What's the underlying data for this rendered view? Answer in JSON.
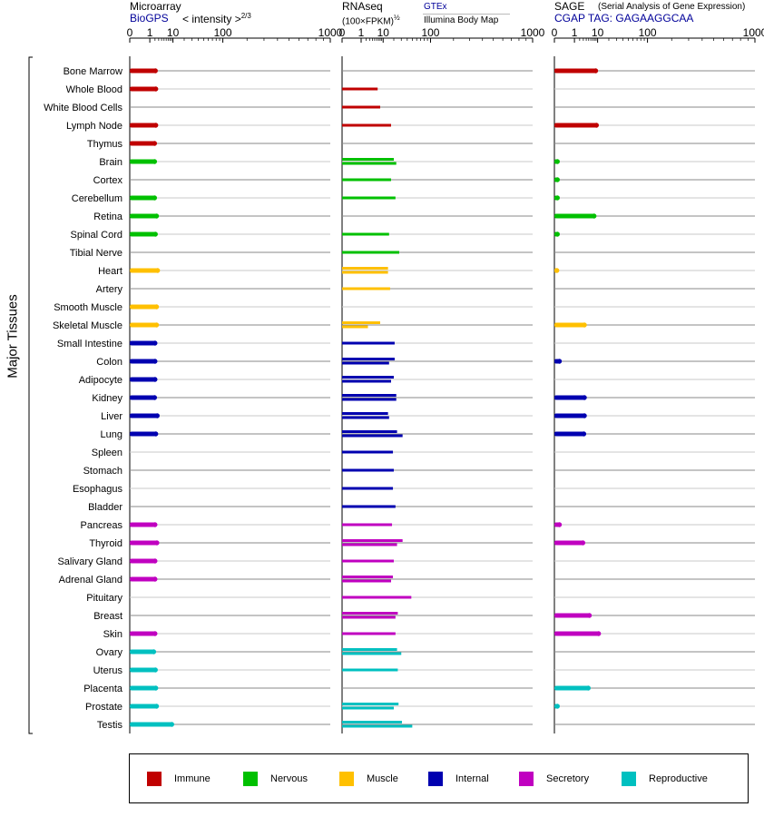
{
  "headers": {
    "microarray_title": "Microarray",
    "microarray_source": "BioGPS",
    "microarray_metric": "< intensity >",
    "microarray_metric_exp": "2/3",
    "rnaseq_title": "RNAseq",
    "rnaseq_metric": "(100×FPKM)",
    "rnaseq_metric_exp": "½",
    "rnaseq_source1": "GTEx",
    "rnaseq_source2": "Illumina Body Map",
    "sage_title": "SAGE",
    "sage_subtitle": "(Serial Analysis of Gene Expression)",
    "sage_tag": "CGAP TAG: GAGAAGGCAA"
  },
  "axis_title": "Major Tissues",
  "legend": [
    {
      "name": "Immune",
      "color": "#c00000"
    },
    {
      "name": "Nervous",
      "color": "#00c000"
    },
    {
      "name": "Muscle",
      "color": "#ffc000"
    },
    {
      "name": "Internal",
      "color": "#0000b0"
    },
    {
      "name": "Secretory",
      "color": "#c000c0"
    },
    {
      "name": "Reproductive",
      "color": "#00c0c0"
    }
  ],
  "chart_data": [
    {
      "type": "bar",
      "panel": "Microarray",
      "x_ticks": [
        "0",
        "1",
        "10",
        "100",
        "1000"
      ],
      "xlim": [
        0,
        1000
      ],
      "categories": [
        "Bone Marrow",
        "Whole Blood",
        "White Blood Cells",
        "Lymph Node",
        "Thymus",
        "Brain",
        "Cortex",
        "Cerebellum",
        "Retina",
        "Spinal Cord",
        "Tibial Nerve",
        "Heart",
        "Artery",
        "Smooth Muscle",
        "Skeletal Muscle",
        "Small Intestine",
        "Colon",
        "Adipocyte",
        "Kidney",
        "Liver",
        "Lung",
        "Spleen",
        "Stomach",
        "Esophagus",
        "Bladder",
        "Pancreas",
        "Thyroid",
        "Salivary Gland",
        "Adrenal Gland",
        "Pituitary",
        "Breast",
        "Skin",
        "Ovary",
        "Uterus",
        "Placenta",
        "Prostate",
        "Testis"
      ],
      "groups": [
        "Immune",
        "Immune",
        "Immune",
        "Immune",
        "Immune",
        "Nervous",
        "Nervous",
        "Nervous",
        "Nervous",
        "Nervous",
        "Nervous",
        "Muscle",
        "Muscle",
        "Muscle",
        "Muscle",
        "Internal",
        "Internal",
        "Internal",
        "Internal",
        "Internal",
        "Internal",
        "Internal",
        "Internal",
        "Internal",
        "Internal",
        "Secretory",
        "Secretory",
        "Secretory",
        "Secretory",
        "Secretory",
        "Secretory",
        "Secretory",
        "Reproductive",
        "Reproductive",
        "Reproductive",
        "Reproductive",
        "Reproductive"
      ],
      "values": [
        [
          2.2
        ],
        [
          2.3
        ],
        [],
        [
          2.3
        ],
        [
          2.0
        ],
        [
          2.0
        ],
        [],
        [
          2.0
        ],
        [
          2.5
        ],
        [
          2.2
        ],
        [],
        [
          2.8
        ],
        [],
        [
          2.5
        ],
        [
          2.5
        ],
        [
          2.1
        ],
        [
          2.1
        ],
        [
          2.1
        ],
        [
          2.0
        ],
        [
          2.7
        ],
        [
          2.3
        ],
        [],
        [],
        [],
        [],
        [
          2.1
        ],
        [
          2.6
        ],
        [
          2.1
        ],
        [
          2.1
        ],
        [],
        [],
        [
          2.1
        ],
        [
          1.8
        ],
        [
          2.2
        ],
        [
          2.3
        ],
        [
          2.5
        ],
        [
          9.5
        ]
      ]
    },
    {
      "type": "bar",
      "panel": "RNAseq",
      "x_ticks": [
        "0",
        "1",
        "10",
        "100",
        "1000"
      ],
      "xlim": [
        0,
        1000
      ],
      "series": [
        "GTEx",
        "Illumina Body Map"
      ],
      "categories": [
        "Bone Marrow",
        "Whole Blood",
        "White Blood Cells",
        "Lymph Node",
        "Thymus",
        "Brain",
        "Cortex",
        "Cerebellum",
        "Retina",
        "Spinal Cord",
        "Tibial Nerve",
        "Heart",
        "Artery",
        "Smooth Muscle",
        "Skeletal Muscle",
        "Small Intestine",
        "Colon",
        "Adipocyte",
        "Kidney",
        "Liver",
        "Lung",
        "Spleen",
        "Stomach",
        "Esophagus",
        "Bladder",
        "Pancreas",
        "Thyroid",
        "Salivary Gland",
        "Adrenal Gland",
        "Pituitary",
        "Breast",
        "Skin",
        "Ovary",
        "Uterus",
        "Placenta",
        "Prostate",
        "Testis"
      ],
      "groups": [
        "Immune",
        "Immune",
        "Immune",
        "Immune",
        "Immune",
        "Nervous",
        "Nervous",
        "Nervous",
        "Nervous",
        "Nervous",
        "Nervous",
        "Muscle",
        "Muscle",
        "Muscle",
        "Muscle",
        "Internal",
        "Internal",
        "Internal",
        "Internal",
        "Internal",
        "Internal",
        "Internal",
        "Internal",
        "Internal",
        "Internal",
        "Secretory",
        "Secretory",
        "Secretory",
        "Secretory",
        "Secretory",
        "Secretory",
        "Secretory",
        "Reproductive",
        "Reproductive",
        "Reproductive",
        "Reproductive",
        "Reproductive"
      ],
      "values": [
        [],
        [
          6.5
        ],
        [
          8
        ],
        [
          17
        ],
        [],
        [
          20,
          23
        ],
        [
          17
        ],
        [
          22
        ],
        [],
        [
          15
        ],
        [
          27
        ],
        [
          14,
          14
        ],
        [
          16
        ],
        [],
        [
          8,
          2.5
        ],
        [
          21
        ],
        [
          21,
          15
        ],
        [
          20,
          17
        ],
        [
          23,
          23
        ],
        [
          14,
          15
        ],
        [
          24,
          32
        ],
        [
          19
        ],
        [
          20
        ],
        [
          19
        ],
        [
          22
        ],
        [
          18
        ],
        [
          32,
          24
        ],
        [
          20
        ],
        [
          19,
          17
        ],
        [
          48
        ],
        [
          25,
          22
        ],
        [
          22
        ],
        [
          24,
          30
        ],
        [
          25
        ],
        [],
        [
          26,
          20
        ],
        [
          31,
          50
        ]
      ]
    },
    {
      "type": "bar",
      "panel": "SAGE",
      "x_ticks": [
        "0",
        "1",
        "10",
        "100",
        "1000"
      ],
      "xlim": [
        0,
        1000
      ],
      "categories": [
        "Bone Marrow",
        "Whole Blood",
        "White Blood Cells",
        "Lymph Node",
        "Thymus",
        "Brain",
        "Cortex",
        "Cerebellum",
        "Retina",
        "Spinal Cord",
        "Tibial Nerve",
        "Heart",
        "Artery",
        "Smooth Muscle",
        "Skeletal Muscle",
        "Small Intestine",
        "Colon",
        "Adipocyte",
        "Kidney",
        "Liver",
        "Lung",
        "Spleen",
        "Stomach",
        "Esophagus",
        "Bladder",
        "Pancreas",
        "Thyroid",
        "Salivary Gland",
        "Adrenal Gland",
        "Pituitary",
        "Breast",
        "Skin",
        "Ovary",
        "Uterus",
        "Placenta",
        "Prostate",
        "Testis"
      ],
      "groups": [
        "Immune",
        "Immune",
        "Immune",
        "Immune",
        "Immune",
        "Nervous",
        "Nervous",
        "Nervous",
        "Nervous",
        "Nervous",
        "Nervous",
        "Muscle",
        "Muscle",
        "Muscle",
        "Muscle",
        "Internal",
        "Internal",
        "Internal",
        "Internal",
        "Internal",
        "Internal",
        "Internal",
        "Internal",
        "Internal",
        "Internal",
        "Secretory",
        "Secretory",
        "Secretory",
        "Secretory",
        "Secretory",
        "Secretory",
        "Secretory",
        "Reproductive",
        "Reproductive",
        "Reproductive",
        "Reproductive",
        "Reproductive"
      ],
      "values": [
        [
          9
        ],
        [],
        [],
        [
          9.5
        ],
        [],
        [
          0.005
        ],
        [
          0.005
        ],
        [
          0.005
        ],
        [
          8
        ],
        [
          0.005
        ],
        [],
        [
          0.003
        ],
        [],
        [],
        [
          3.5
        ],
        [],
        [
          0.02
        ],
        [],
        [
          3.5
        ],
        [
          3.5
        ],
        [
          3.3
        ],
        [],
        [],
        [],
        [],
        [
          0.02
        ],
        [
          3
        ],
        [],
        [],
        [],
        [
          5.5
        ],
        [
          11
        ],
        [],
        [],
        [
          5
        ],
        [
          0.005
        ],
        []
      ]
    }
  ]
}
